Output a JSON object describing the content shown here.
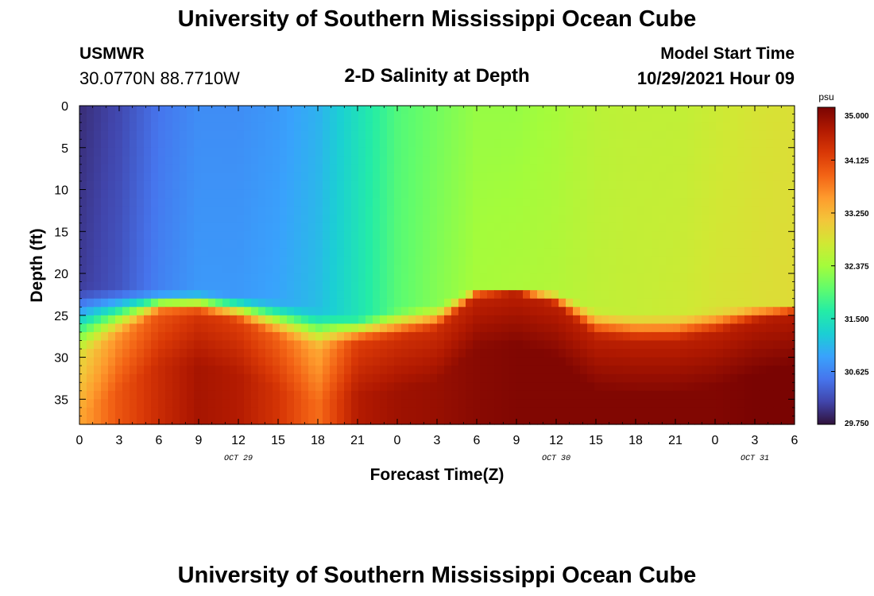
{
  "header": {
    "title": "University of Southern Mississippi Ocean Cube",
    "station": "USMWR",
    "coordinates": "30.0770N  88.7710W",
    "subtitle": "2-D Salinity at Depth",
    "model_start_label": "Model Start Time",
    "model_start_value": "10/29/2021 Hour 09"
  },
  "footer": {
    "title": "University of Southern Mississippi Ocean Cube"
  },
  "chart_data": {
    "type": "heatmap",
    "title": "2-D Salinity at Depth",
    "xlabel": "Forecast Time(Z)",
    "ylabel": "Depth (ft)",
    "x_ticks": [
      "0",
      "3",
      "6",
      "9",
      "12",
      "15",
      "18",
      "21",
      "0",
      "3",
      "6",
      "9",
      "12",
      "15",
      "18",
      "21",
      "0",
      "3",
      "6"
    ],
    "x_ticks_hours": [
      0,
      3,
      6,
      9,
      12,
      15,
      18,
      21,
      24,
      27,
      30,
      33,
      36,
      39,
      42,
      45,
      48,
      51,
      54
    ],
    "xlim_hours": [
      0,
      54
    ],
    "date_labels": [
      {
        "text": "OCT 29",
        "hour": 12
      },
      {
        "text": "OCT 30",
        "hour": 36
      },
      {
        "text": "OCT 31",
        "hour": 51
      }
    ],
    "y_ticks": [
      "0",
      "5",
      "10",
      "15",
      "20",
      "25",
      "30",
      "35"
    ],
    "y_tick_values": [
      0,
      5,
      10,
      15,
      20,
      25,
      30,
      35
    ],
    "ylim": [
      0,
      38
    ],
    "y_inverted": true,
    "colorbar": {
      "unit": "psu",
      "ticks": [
        "35.000",
        "34.125",
        "33.250",
        "32.375",
        "31.500",
        "30.625",
        "29.750"
      ],
      "tick_values": [
        35.0,
        34.125,
        33.25,
        32.375,
        31.5,
        30.625,
        29.75
      ],
      "range": [
        29.75,
        35.0
      ],
      "colors": [
        "#30123b",
        "#4145ab",
        "#4675ed",
        "#39a2fc",
        "#1bcfd4",
        "#24eca6",
        "#61fc6c",
        "#a4fc3b",
        "#d1e834",
        "#f3c63a",
        "#fe9b2d",
        "#f36315",
        "#d93806",
        "#b11901",
        "#7a0402"
      ]
    },
    "profiles": {
      "hours": [
        0,
        3,
        6,
        9,
        12,
        15,
        18,
        21,
        24,
        27,
        30,
        33,
        36,
        39,
        42,
        45,
        48,
        51,
        54
      ],
      "surface_psu": [
        29.95,
        30.15,
        30.5,
        30.7,
        30.7,
        30.8,
        31.0,
        31.45,
        31.9,
        32.1,
        32.3,
        32.3,
        32.4,
        32.55,
        32.6,
        32.6,
        32.7,
        32.8,
        32.85
      ],
      "upper_psu": [
        30.05,
        30.25,
        30.6,
        30.8,
        30.8,
        30.9,
        31.1,
        31.5,
        31.95,
        32.2,
        32.4,
        32.45,
        32.5,
        32.6,
        32.65,
        32.7,
        32.8,
        32.85,
        32.9
      ],
      "thermocline_top_ft": [
        21,
        21.5,
        22,
        22,
        22.5,
        23,
        24,
        25,
        24,
        23.5,
        21.5,
        21.5,
        22,
        24,
        24.5,
        24.5,
        24,
        23.5,
        23.5
      ],
      "thermocline_bottom_ft": [
        31,
        28,
        25,
        25,
        26,
        28,
        29.5,
        28.5,
        28,
        27,
        23,
        22.5,
        24,
        28,
        28.5,
        28.5,
        27.5,
        26,
        25
      ],
      "bottom_psu": [
        33.4,
        34.0,
        34.4,
        34.7,
        34.6,
        34.3,
        33.8,
        34.6,
        34.75,
        34.8,
        34.9,
        34.95,
        34.95,
        34.95,
        34.95,
        34.95,
        34.95,
        35.0,
        35.0
      ]
    }
  }
}
